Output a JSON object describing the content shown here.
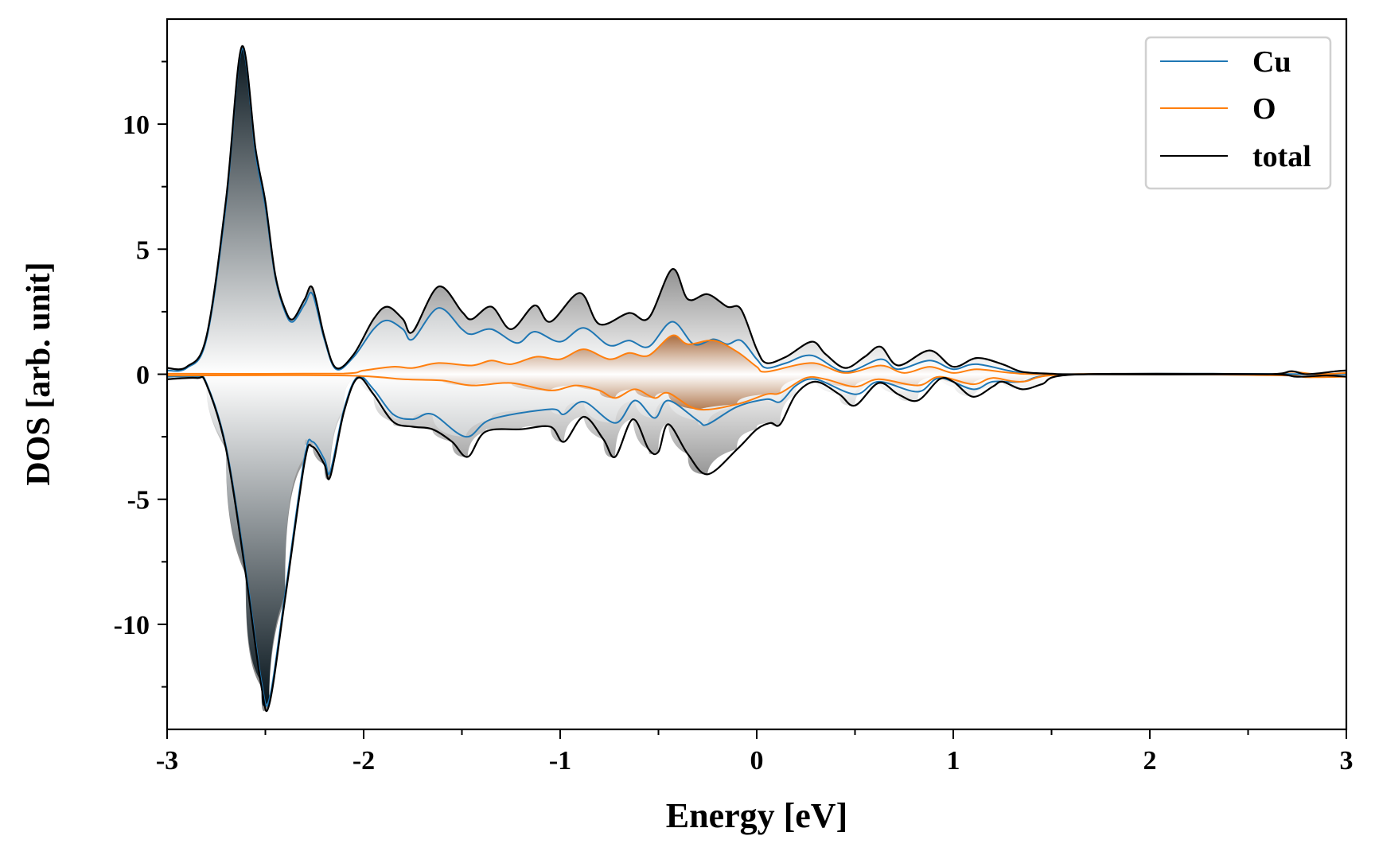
{
  "chart_data": {
    "type": "line",
    "title": "",
    "xlabel": "Energy [eV]",
    "ylabel": "DOS [arb. unit]",
    "xlim": [
      -3,
      3
    ],
    "ylim": [
      -14.2,
      14.2
    ],
    "xticks": [
      -3,
      -2,
      -1,
      0,
      1,
      2,
      3
    ],
    "xtick_labels": [
      "-3",
      "-2",
      "-1",
      "0",
      "1",
      "2",
      "3"
    ],
    "yticks": [
      -10,
      -5,
      0,
      5,
      10
    ],
    "ytick_labels": [
      "-10",
      "-5",
      "0",
      "5",
      "10"
    ],
    "grid": false,
    "legend_position": "top-right",
    "colors": {
      "Cu": "#1f77b4",
      "O": "#ff7f0e",
      "total": "#000000"
    },
    "series": [
      {
        "name": "total",
        "direction": "up",
        "points": [
          [
            -3,
            0.25
          ],
          [
            -2.9,
            0.3
          ],
          [
            -2.8,
            1.5
          ],
          [
            -2.7,
            7
          ],
          [
            -2.62,
            13.1
          ],
          [
            -2.55,
            9
          ],
          [
            -2.5,
            6.9
          ],
          [
            -2.45,
            4
          ],
          [
            -2.4,
            2.6
          ],
          [
            -2.36,
            2.2
          ],
          [
            -2.3,
            3
          ],
          [
            -2.26,
            3.45
          ],
          [
            -2.2,
            1.5
          ],
          [
            -2.14,
            0.25
          ],
          [
            -2.05,
            0.8
          ],
          [
            -1.95,
            2.2
          ],
          [
            -1.88,
            2.7
          ],
          [
            -1.8,
            2.2
          ],
          [
            -1.75,
            1.7
          ],
          [
            -1.62,
            3.5
          ],
          [
            -1.5,
            2.5
          ],
          [
            -1.45,
            2.2
          ],
          [
            -1.35,
            2.7
          ],
          [
            -1.25,
            1.8
          ],
          [
            -1.13,
            2.75
          ],
          [
            -1.05,
            2.1
          ],
          [
            -0.9,
            3.25
          ],
          [
            -0.8,
            2.0
          ],
          [
            -0.65,
            2.45
          ],
          [
            -0.55,
            2.25
          ],
          [
            -0.43,
            4.2
          ],
          [
            -0.35,
            3.0
          ],
          [
            -0.25,
            3.2
          ],
          [
            -0.15,
            2.7
          ],
          [
            -0.08,
            2.6
          ],
          [
            0,
            1.0
          ],
          [
            0.05,
            0.45
          ],
          [
            0.15,
            0.7
          ],
          [
            0.28,
            1.3
          ],
          [
            0.35,
            0.8
          ],
          [
            0.45,
            0.25
          ],
          [
            0.55,
            0.7
          ],
          [
            0.63,
            1.1
          ],
          [
            0.72,
            0.35
          ],
          [
            0.88,
            0.95
          ],
          [
            1.0,
            0.3
          ],
          [
            1.12,
            0.65
          ],
          [
            1.25,
            0.4
          ],
          [
            1.35,
            0.1
          ],
          [
            1.5,
            0.02
          ],
          [
            1.6,
            0
          ],
          [
            2.6,
            0
          ],
          [
            2.72,
            0.12
          ],
          [
            2.8,
            0
          ],
          [
            2.95,
            0.12
          ],
          [
            3,
            0.15
          ]
        ]
      },
      {
        "name": "total",
        "direction": "down",
        "points": [
          [
            -3,
            -0.2
          ],
          [
            -2.85,
            -0.15
          ],
          [
            -2.8,
            -0.4
          ],
          [
            -2.7,
            -3
          ],
          [
            -2.6,
            -8
          ],
          [
            -2.52,
            -12.5
          ],
          [
            -2.48,
            -13.2
          ],
          [
            -2.4,
            -9
          ],
          [
            -2.3,
            -3.5
          ],
          [
            -2.26,
            -2.9
          ],
          [
            -2.2,
            -3.6
          ],
          [
            -2.17,
            -4.1
          ],
          [
            -2.1,
            -1.5
          ],
          [
            -2.03,
            -0.15
          ],
          [
            -1.95,
            -0.8
          ],
          [
            -1.85,
            -1.9
          ],
          [
            -1.75,
            -2.1
          ],
          [
            -1.65,
            -2.2
          ],
          [
            -1.55,
            -2.7
          ],
          [
            -1.47,
            -3.3
          ],
          [
            -1.38,
            -2.3
          ],
          [
            -1.2,
            -2.2
          ],
          [
            -1.05,
            -2.1
          ],
          [
            -0.98,
            -2.7
          ],
          [
            -0.88,
            -1.7
          ],
          [
            -0.78,
            -2.6
          ],
          [
            -0.72,
            -3.3
          ],
          [
            -0.63,
            -1.8
          ],
          [
            -0.55,
            -3.0
          ],
          [
            -0.5,
            -3.1
          ],
          [
            -0.45,
            -2.0
          ],
          [
            -0.35,
            -3.2
          ],
          [
            -0.25,
            -4.0
          ],
          [
            -0.1,
            -3.0
          ],
          [
            0,
            -2.2
          ],
          [
            0.07,
            -1.95
          ],
          [
            0.12,
            -2.0
          ],
          [
            0.2,
            -0.8
          ],
          [
            0.3,
            -0.3
          ],
          [
            0.42,
            -0.8
          ],
          [
            0.5,
            -1.25
          ],
          [
            0.62,
            -0.35
          ],
          [
            0.72,
            -0.8
          ],
          [
            0.82,
            -1.05
          ],
          [
            0.93,
            -0.2
          ],
          [
            1.0,
            -0.3
          ],
          [
            1.1,
            -0.9
          ],
          [
            1.2,
            -0.5
          ],
          [
            1.25,
            -0.3
          ],
          [
            1.35,
            -0.6
          ],
          [
            1.45,
            -0.4
          ],
          [
            1.6,
            -0.02
          ],
          [
            2.6,
            0
          ],
          [
            2.75,
            -0.1
          ],
          [
            2.9,
            -0.05
          ],
          [
            3,
            -0.1
          ]
        ]
      },
      {
        "name": "Cu",
        "direction": "up",
        "points": [
          [
            -3,
            0.15
          ],
          [
            -2.9,
            0.25
          ],
          [
            -2.8,
            1.4
          ],
          [
            -2.7,
            6.8
          ],
          [
            -2.62,
            13
          ],
          [
            -2.55,
            8.8
          ],
          [
            -2.5,
            6.7
          ],
          [
            -2.45,
            3.9
          ],
          [
            -2.4,
            2.5
          ],
          [
            -2.36,
            2.1
          ],
          [
            -2.3,
            2.8
          ],
          [
            -2.26,
            3.2
          ],
          [
            -2.2,
            1.4
          ],
          [
            -2.14,
            0.2
          ],
          [
            -2.05,
            0.7
          ],
          [
            -1.95,
            1.8
          ],
          [
            -1.88,
            2.15
          ],
          [
            -1.8,
            1.8
          ],
          [
            -1.75,
            1.4
          ],
          [
            -1.62,
            2.65
          ],
          [
            -1.5,
            1.8
          ],
          [
            -1.45,
            1.6
          ],
          [
            -1.35,
            1.8
          ],
          [
            -1.22,
            1.25
          ],
          [
            -1.13,
            1.7
          ],
          [
            -1.0,
            1.3
          ],
          [
            -0.88,
            1.85
          ],
          [
            -0.75,
            1.15
          ],
          [
            -0.65,
            1.35
          ],
          [
            -0.55,
            1.1
          ],
          [
            -0.43,
            2.1
          ],
          [
            -0.32,
            1.2
          ],
          [
            -0.22,
            1.4
          ],
          [
            -0.15,
            1.2
          ],
          [
            -0.08,
            1.35
          ],
          [
            0,
            0.6
          ],
          [
            0.05,
            0.25
          ],
          [
            0.15,
            0.45
          ],
          [
            0.28,
            0.75
          ],
          [
            0.45,
            0.1
          ],
          [
            0.63,
            0.6
          ],
          [
            0.72,
            0.2
          ],
          [
            0.88,
            0.55
          ],
          [
            1.0,
            0.2
          ],
          [
            1.12,
            0.4
          ],
          [
            1.35,
            0.05
          ],
          [
            1.6,
            0
          ],
          [
            3,
            0
          ]
        ]
      },
      {
        "name": "Cu",
        "direction": "down",
        "points": [
          [
            -3,
            -0.1
          ],
          [
            -2.85,
            -0.1
          ],
          [
            -2.8,
            -0.35
          ],
          [
            -2.7,
            -2.9
          ],
          [
            -2.6,
            -7.8
          ],
          [
            -2.52,
            -12.3
          ],
          [
            -2.48,
            -13
          ],
          [
            -2.4,
            -8.8
          ],
          [
            -2.3,
            -3.3
          ],
          [
            -2.26,
            -2.7
          ],
          [
            -2.2,
            -3.4
          ],
          [
            -2.17,
            -3.9
          ],
          [
            -2.1,
            -1.4
          ],
          [
            -2.03,
            -0.1
          ],
          [
            -1.95,
            -0.6
          ],
          [
            -1.85,
            -1.6
          ],
          [
            -1.75,
            -1.8
          ],
          [
            -1.65,
            -1.6
          ],
          [
            -1.48,
            -2.5
          ],
          [
            -1.35,
            -1.8
          ],
          [
            -1.05,
            -1.4
          ],
          [
            -0.98,
            -1.6
          ],
          [
            -0.88,
            -1.1
          ],
          [
            -0.72,
            -1.95
          ],
          [
            -0.62,
            -1.05
          ],
          [
            -0.52,
            -1.75
          ],
          [
            -0.45,
            -1.05
          ],
          [
            -0.3,
            -1.85
          ],
          [
            -0.25,
            -2.0
          ],
          [
            -0.1,
            -1.3
          ],
          [
            0.05,
            -1.0
          ],
          [
            0.12,
            -1.1
          ],
          [
            0.2,
            -0.45
          ],
          [
            0.3,
            -0.2
          ],
          [
            0.5,
            -0.8
          ],
          [
            0.62,
            -0.3
          ],
          [
            0.82,
            -0.7
          ],
          [
            0.93,
            -0.15
          ],
          [
            1.1,
            -0.6
          ],
          [
            1.2,
            -0.3
          ],
          [
            1.35,
            -0.3
          ],
          [
            1.6,
            0
          ],
          [
            3,
            0
          ]
        ]
      },
      {
        "name": "O",
        "direction": "up",
        "points": [
          [
            -3,
            0.02
          ],
          [
            -2.1,
            0.03
          ],
          [
            -2.0,
            0.15
          ],
          [
            -1.85,
            0.3
          ],
          [
            -1.75,
            0.25
          ],
          [
            -1.62,
            0.45
          ],
          [
            -1.45,
            0.35
          ],
          [
            -1.35,
            0.55
          ],
          [
            -1.25,
            0.4
          ],
          [
            -1.12,
            0.7
          ],
          [
            -1.0,
            0.6
          ],
          [
            -0.88,
            1.0
          ],
          [
            -0.75,
            0.6
          ],
          [
            -0.65,
            0.85
          ],
          [
            -0.55,
            0.75
          ],
          [
            -0.43,
            1.55
          ],
          [
            -0.35,
            1.2
          ],
          [
            -0.22,
            1.35
          ],
          [
            -0.1,
            0.9
          ],
          [
            0,
            0.3
          ],
          [
            0.05,
            0.1
          ],
          [
            0.28,
            0.45
          ],
          [
            0.45,
            0.05
          ],
          [
            0.63,
            0.35
          ],
          [
            0.75,
            0.05
          ],
          [
            0.88,
            0.3
          ],
          [
            1.0,
            0.05
          ],
          [
            1.12,
            0.2
          ],
          [
            1.3,
            0.05
          ],
          [
            1.5,
            0
          ],
          [
            2.6,
            0
          ],
          [
            2.72,
            0.1
          ],
          [
            2.85,
            0
          ],
          [
            3,
            0.05
          ]
        ]
      },
      {
        "name": "O",
        "direction": "down",
        "points": [
          [
            -3,
            -0.05
          ],
          [
            -2.1,
            -0.05
          ],
          [
            -1.8,
            -0.2
          ],
          [
            -1.6,
            -0.25
          ],
          [
            -1.45,
            -0.45
          ],
          [
            -1.25,
            -0.35
          ],
          [
            -1.05,
            -0.65
          ],
          [
            -0.92,
            -0.45
          ],
          [
            -0.8,
            -0.65
          ],
          [
            -0.72,
            -0.95
          ],
          [
            -0.62,
            -0.6
          ],
          [
            -0.52,
            -0.95
          ],
          [
            -0.45,
            -0.75
          ],
          [
            -0.3,
            -1.4
          ],
          [
            -0.1,
            -1.2
          ],
          [
            0.05,
            -0.8
          ],
          [
            0.12,
            -0.75
          ],
          [
            0.25,
            -0.15
          ],
          [
            0.35,
            -0.2
          ],
          [
            0.5,
            -0.5
          ],
          [
            0.62,
            -0.2
          ],
          [
            0.82,
            -0.45
          ],
          [
            0.93,
            -0.1
          ],
          [
            1.1,
            -0.4
          ],
          [
            1.2,
            -0.15
          ],
          [
            1.35,
            -0.3
          ],
          [
            1.6,
            0
          ],
          [
            2.7,
            -0.05
          ],
          [
            2.8,
            -0.12
          ],
          [
            3,
            -0.1
          ]
        ]
      }
    ],
    "legend": [
      {
        "label": "Cu",
        "color": "#1f77b4"
      },
      {
        "label": "O",
        "color": "#ff7f0e"
      },
      {
        "label": "total",
        "color": "#000000"
      }
    ]
  }
}
